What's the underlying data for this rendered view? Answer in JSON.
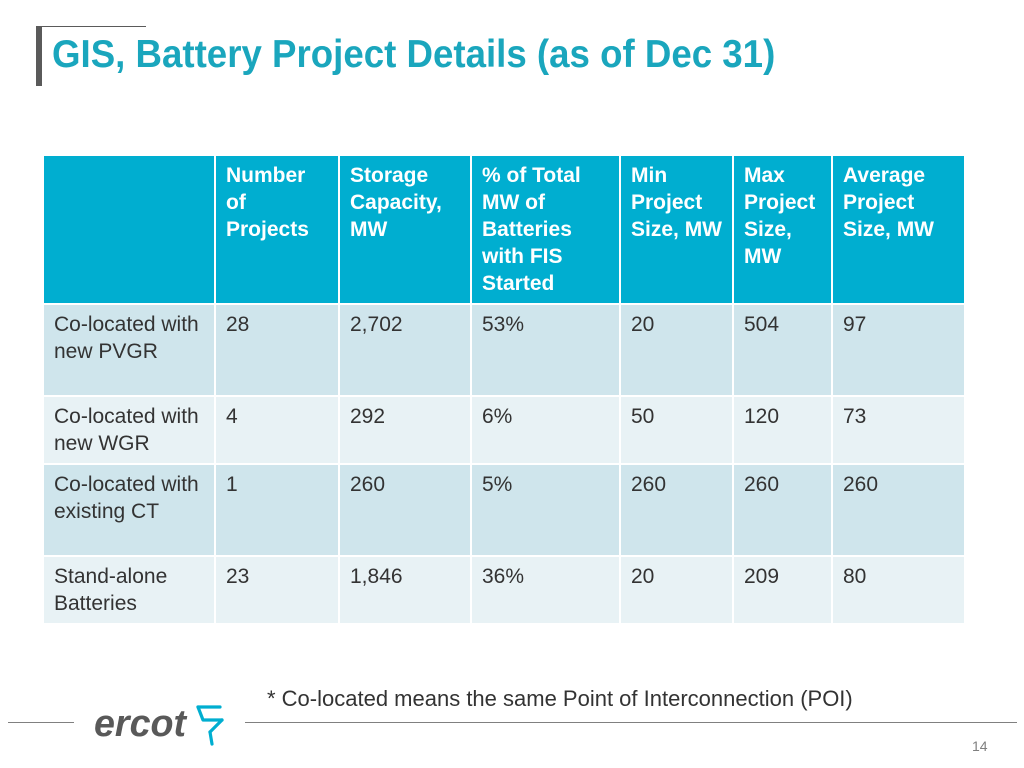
{
  "slide": {
    "title": "GIS, Battery Project Details (as of Dec 31)",
    "footnote": "* Co-located means the same Point of Interconnection (POI)",
    "page_number": "14",
    "logo_text": "ercot"
  },
  "table": {
    "headers": [
      "",
      "Number of Projects",
      "Storage Capacity, MW",
      "% of Total MW of Batteries with FIS Started",
      "Min Project Size, MW",
      "Max Project Size, MW",
      "Average Project Size, MW"
    ],
    "rows": [
      [
        "Co-located with new PVGR",
        "28",
        "2,702",
        "53%",
        "20",
        "504",
        "97"
      ],
      [
        "Co-located with new WGR",
        "4",
        "292",
        "6%",
        "50",
        "120",
        "73"
      ],
      [
        "Co-located with existing CT",
        "1",
        "260",
        "5%",
        "260",
        "260",
        "260"
      ],
      [
        "Stand-alone Batteries",
        "23",
        "1,846",
        "36%",
        "20",
        "209",
        "80"
      ]
    ]
  },
  "colors": {
    "title": "#1aa6bd",
    "header_bg": "#00aed0",
    "row_odd_bg": "#cfe5ec",
    "row_even_bg": "#e8f2f5",
    "logo_gray": "#595959",
    "logo_teal": "#00aed0"
  }
}
